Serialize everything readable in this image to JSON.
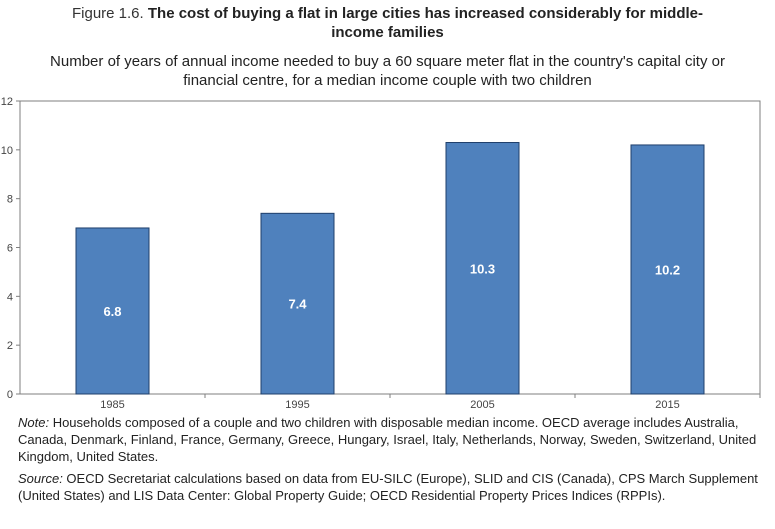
{
  "figure": {
    "number": "Figure 1.6.",
    "title_line1": "The cost of buying a flat in large cities has increased considerably for middle-",
    "title_line2": "income families",
    "subtitle_line1": "Number of years of annual income needed to buy a 60 square meter flat in the country's capital city or",
    "subtitle_line2": "financial centre, for a median income couple with two children"
  },
  "chart_data": {
    "type": "bar",
    "title": "Number of years of annual income needed to buy a 60 square meter flat in the country's capital city or financial centre, for a median income couple with two children",
    "categories": [
      "1985",
      "1995",
      "2005",
      "2015"
    ],
    "values": [
      6.8,
      7.4,
      10.3,
      10.2
    ],
    "data_labels": [
      "6.8",
      "7.4",
      "10.3",
      "10.2"
    ],
    "xlabel": "",
    "ylabel": "",
    "ylim": [
      0,
      12
    ],
    "yticks": [
      "0",
      "2",
      "4",
      "6",
      "8",
      "10",
      "12"
    ],
    "bar_color": "#4F81BD",
    "bar_edge_color": "#1F3F6B",
    "grid": false,
    "legend": "none"
  },
  "notes": {
    "note_label": "Note:",
    "note_text": " Households composed of a couple and two children with disposable median income. OECD average includes Australia, Canada, Denmark, Finland, France, Germany, Greece, Hungary, Israel, Italy, Netherlands, Norway, Sweden, Switzerland, United Kingdom, United States.",
    "source_label": "Source:",
    "source_text": " OECD Secretariat calculations based on data from EU-SILC (Europe), SLID and CIS (Canada), CPS March Supplement (United States) and LIS Data Center: Global Property Guide; OECD Residential Property Prices Indices (RPPIs)."
  }
}
